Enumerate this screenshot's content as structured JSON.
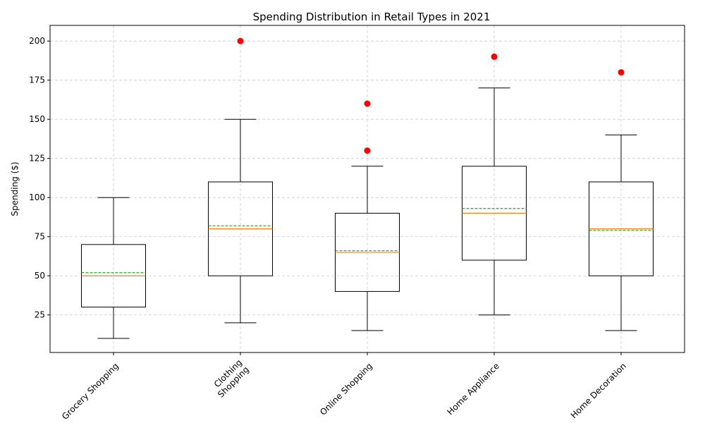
{
  "chart_data": {
    "type": "box",
    "title": "Spending Distribution in Retail Types in 2021",
    "xlabel": "",
    "ylabel": "Spending ($)",
    "ylim": [
      1,
      210
    ],
    "yticks": [
      25,
      50,
      75,
      100,
      125,
      150,
      175,
      200
    ],
    "grid": true,
    "categories": [
      [
        "Grocery Shopping"
      ],
      [
        "Clothing",
        "Shopping"
      ],
      [
        "Online Shopping"
      ],
      [
        "Home Appliance"
      ],
      [
        "Home Decoration"
      ]
    ],
    "boxes": [
      {
        "min": 10,
        "q1": 30,
        "median": 50,
        "q3": 70,
        "max": 100,
        "mean": 52,
        "outliers": []
      },
      {
        "min": 20,
        "q1": 50,
        "median": 80,
        "q3": 110,
        "max": 150,
        "mean": 82,
        "outliers": [
          200
        ]
      },
      {
        "min": 15,
        "q1": 40,
        "median": 65,
        "q3": 90,
        "max": 120,
        "mean": 66,
        "outliers": [
          130,
          160
        ]
      },
      {
        "min": 25,
        "q1": 60,
        "median": 90,
        "q3": 120,
        "max": 170,
        "mean": 93,
        "outliers": [
          190
        ]
      },
      {
        "min": 15,
        "q1": 50,
        "median": 80,
        "q3": 110,
        "max": 140,
        "mean": 79,
        "outliers": [
          180
        ]
      }
    ],
    "colors": {
      "box": "#000000",
      "median": "#ff7f0e",
      "mean": "#2ca02c",
      "outlier": "#ff0000",
      "grid": "#cccccc"
    }
  }
}
